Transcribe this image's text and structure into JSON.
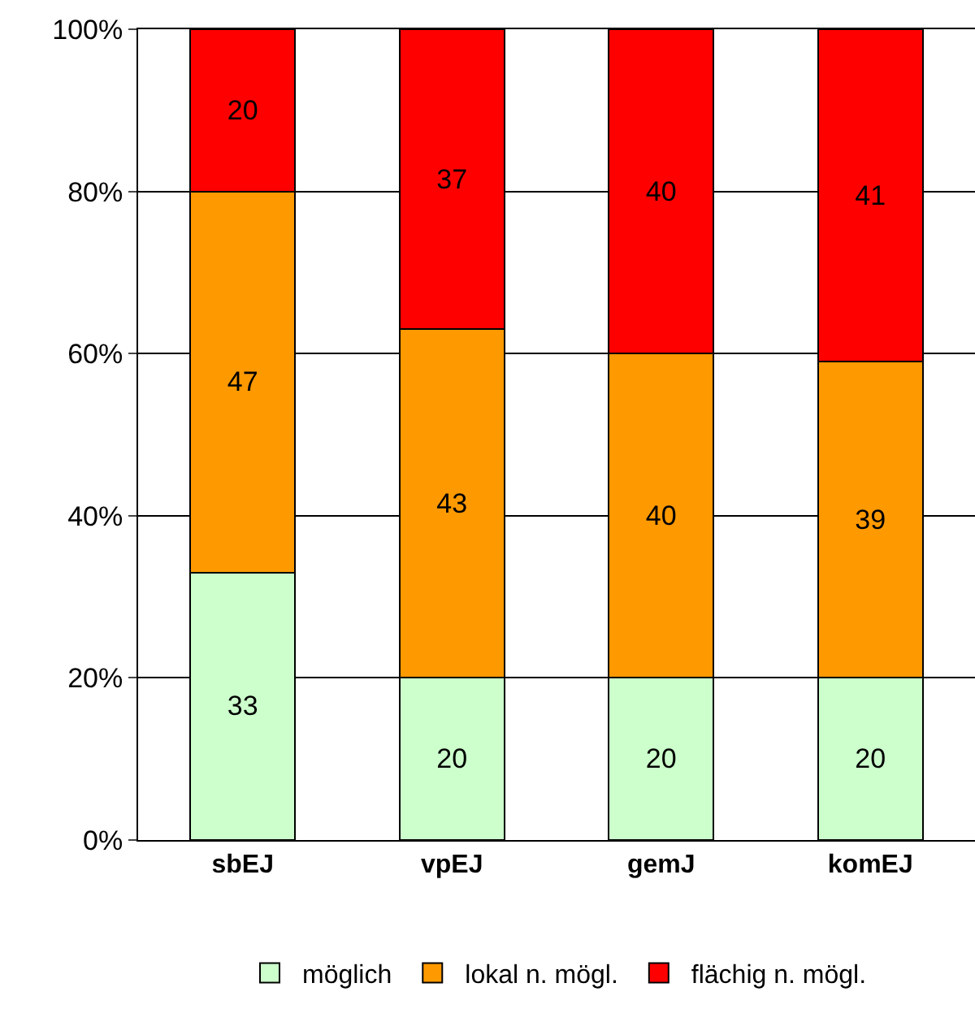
{
  "chart_data": {
    "type": "bar",
    "stacked": true,
    "data_labels": true,
    "categories": [
      "sbEJ",
      "vpEJ",
      "gemJ",
      "komEJ"
    ],
    "series": [
      {
        "name": "möglich",
        "color": "#ccffcc",
        "values": [
          33,
          20,
          20,
          20
        ]
      },
      {
        "name": "lokal n. mögl.",
        "color": "#ff9900",
        "values": [
          47,
          43,
          40,
          39
        ]
      },
      {
        "name": "flächig n. mögl.",
        "color": "#ff0000",
        "values": [
          20,
          37,
          40,
          41
        ]
      }
    ],
    "ylim": [
      0,
      100
    ],
    "yticks": [
      {
        "value": 0,
        "label": "0%"
      },
      {
        "value": 20,
        "label": "20%"
      },
      {
        "value": 40,
        "label": "40%"
      },
      {
        "value": 60,
        "label": "60%"
      },
      {
        "value": 80,
        "label": "80%"
      },
      {
        "value": 100,
        "label": "100%"
      }
    ],
    "grid": "y",
    "legend": "bottom"
  }
}
